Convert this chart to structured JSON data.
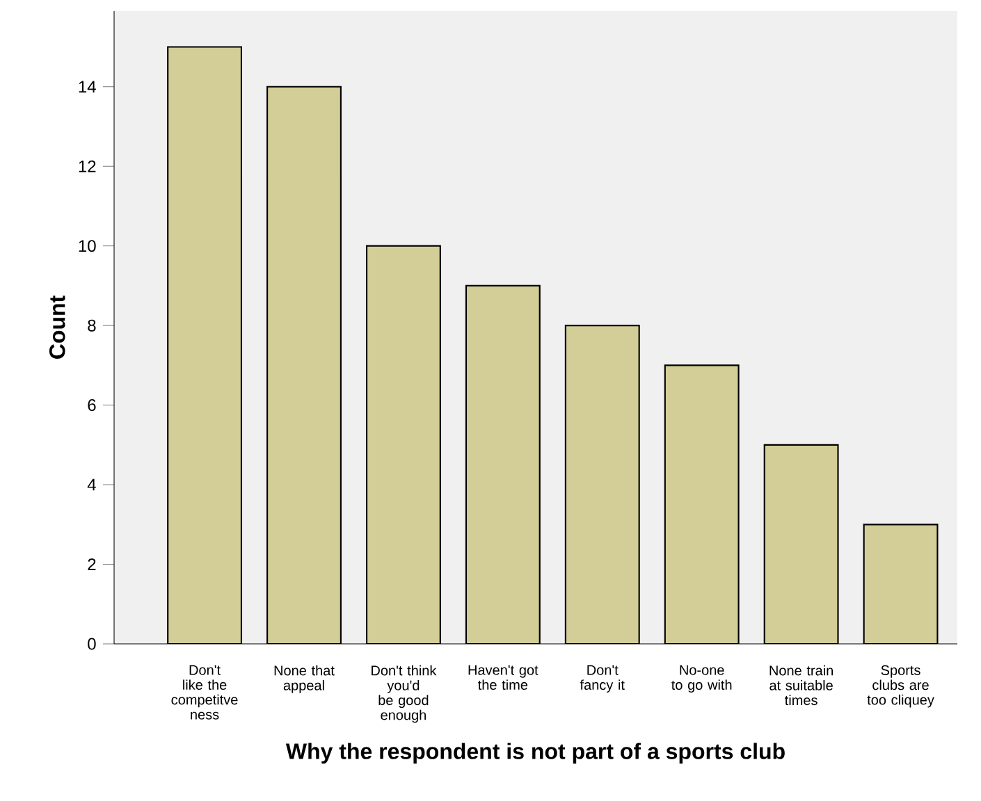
{
  "chart_data": {
    "type": "bar",
    "xlabel": "Why the respondent is not part of a sports club",
    "ylabel": "Count",
    "categories": [
      "Don't like the competitve ness",
      "None that appeal",
      "Don't think you'd be good enough",
      "Haven't got the time",
      "Don't fancy it",
      "No-one to go with",
      "None train at suitable times",
      "Sports clubs are too cliquey"
    ],
    "values": [
      15,
      14,
      10,
      9,
      8,
      7,
      5,
      3
    ],
    "color": "#d3ce97",
    "ylim": [
      0,
      15.9
    ],
    "yticks": [
      0,
      2,
      4,
      6,
      8,
      10,
      12,
      14
    ],
    "grid": false
  }
}
